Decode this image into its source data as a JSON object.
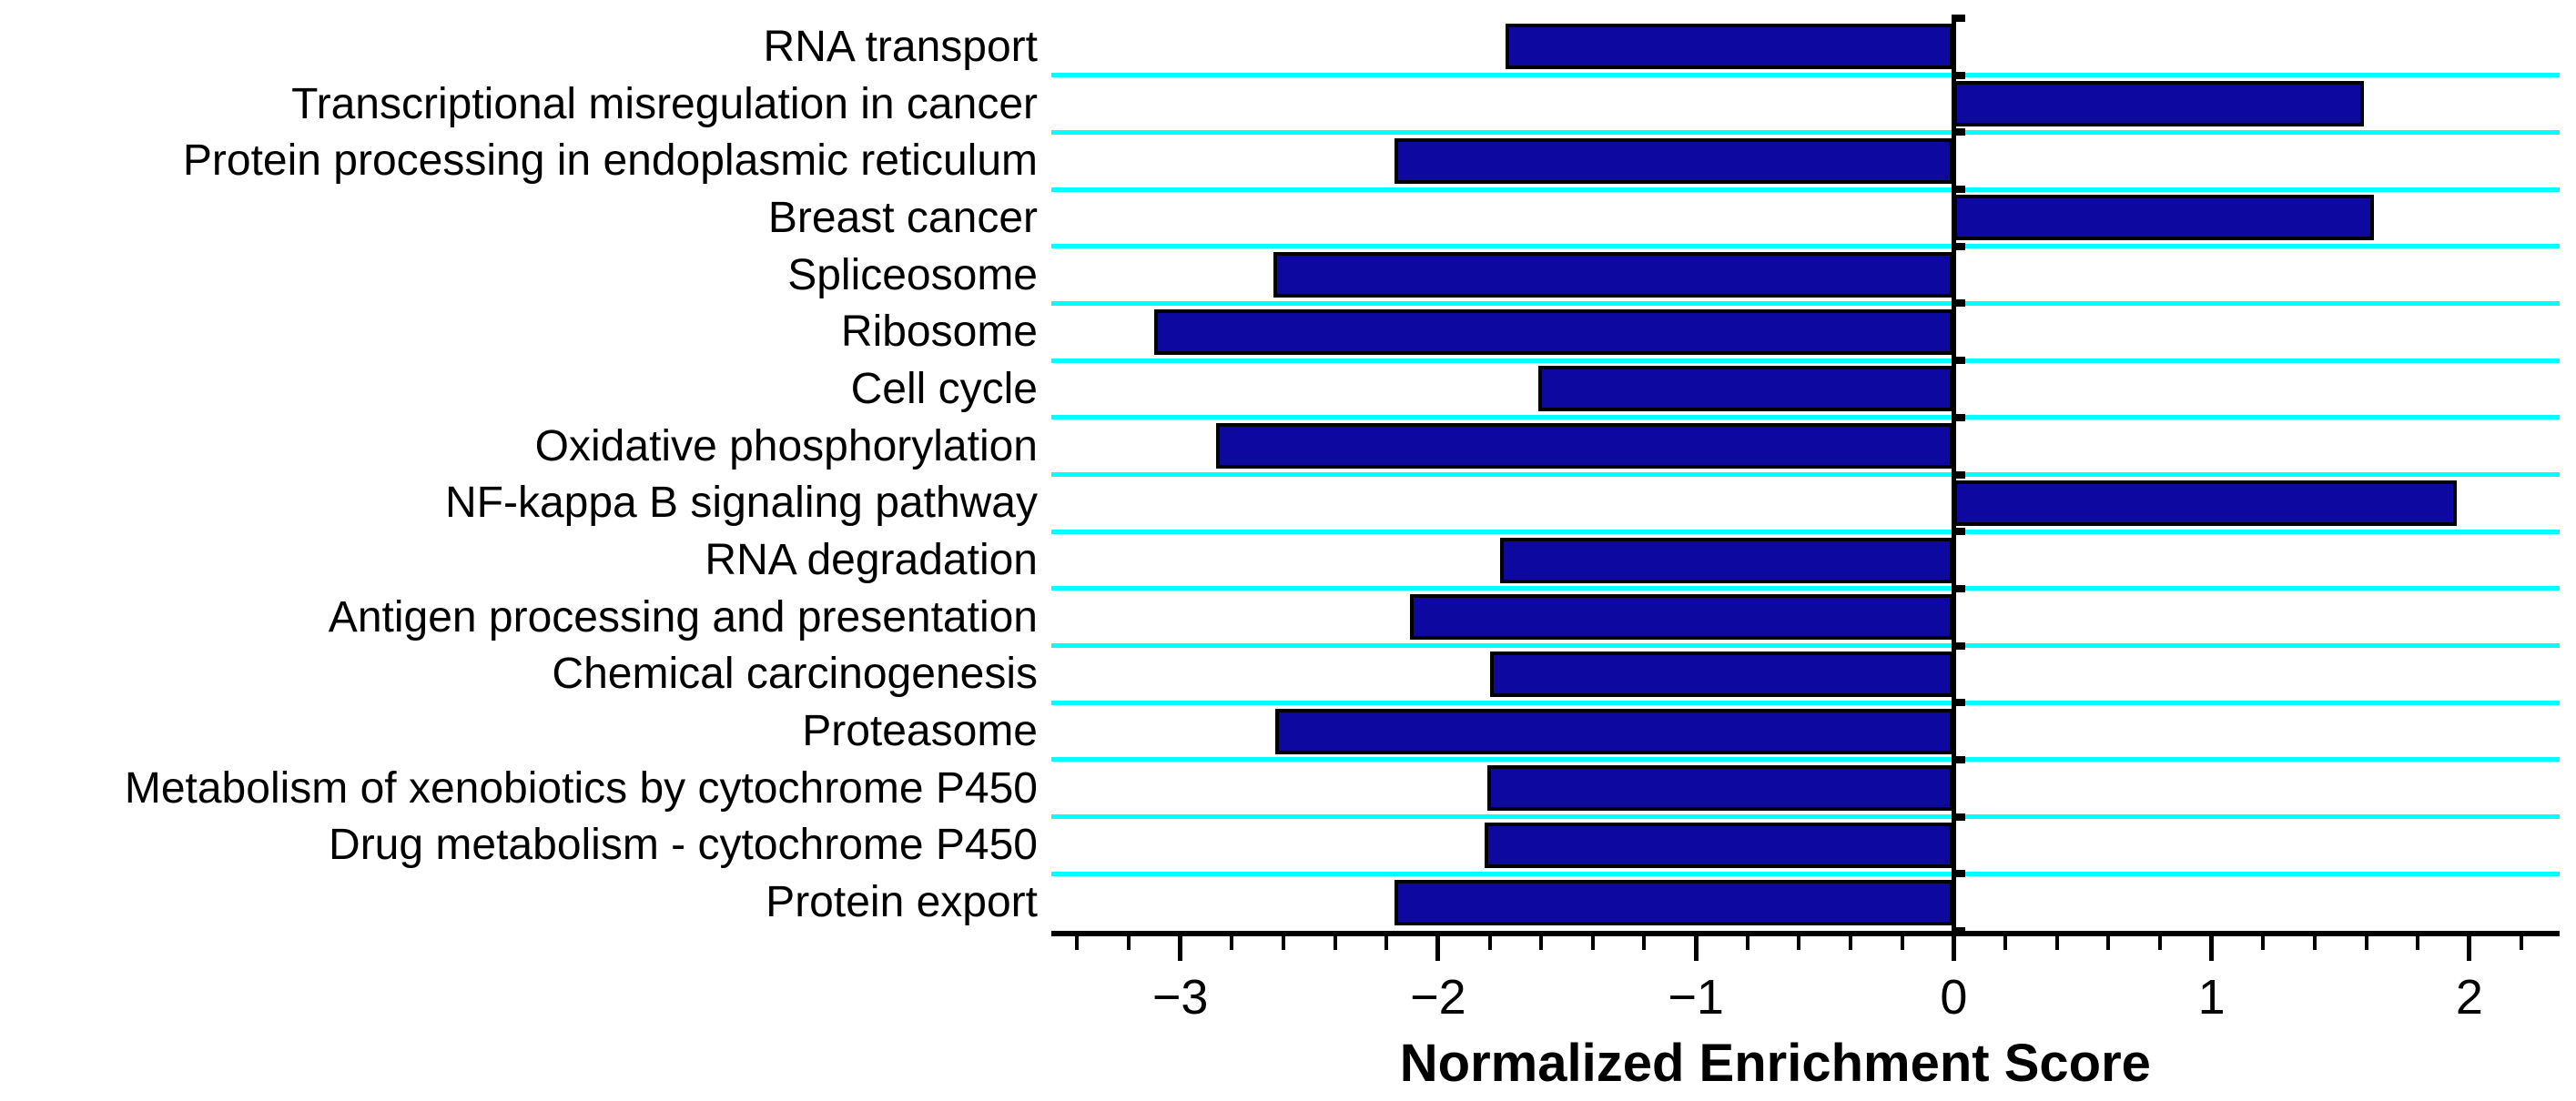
{
  "chart_data": {
    "type": "bar",
    "orientation": "horizontal",
    "title": "",
    "xlabel": "Normalized Enrichment Score",
    "ylabel": "",
    "categories": [
      "RNA transport",
      "Transcriptional misregulation in cancer",
      "Protein processing in endoplasmic reticulum",
      "Breast cancer",
      "Spliceosome",
      "Ribosome",
      "Cell cycle",
      "Oxidative phosphorylation",
      "NF-kappa B signaling pathway",
      "RNA degradation",
      "Antigen processing and presentation",
      "Chemical carcinogenesis",
      "Proteasome",
      "Metabolism of xenobiotics by cytochrome P450",
      "Drug metabolism - cytochrome P450",
      "Protein export"
    ],
    "values": [
      -1.74,
      1.59,
      -2.17,
      1.63,
      -2.64,
      -3.1,
      -1.61,
      -2.86,
      1.95,
      -1.76,
      -2.11,
      -1.8,
      -2.63,
      -1.81,
      -1.82,
      -2.17
    ],
    "xlim": [
      -3.5,
      2.35
    ],
    "x_major_ticks": [
      -3,
      -2,
      -1,
      0,
      1,
      2
    ],
    "x_major_tick_labels": [
      "−3",
      "−2",
      "−1",
      "0",
      "1",
      "2"
    ],
    "x_minor_tick_step": 0.2,
    "grid": "cyan horizontal separator lines between category rows",
    "legend": "none",
    "colors": {
      "bar_fill": "#0D09A0",
      "bar_border": "#000000",
      "gridline": "#00FFFF",
      "axis": "#000000",
      "text": "#000000",
      "background": "#FFFFFF"
    }
  }
}
